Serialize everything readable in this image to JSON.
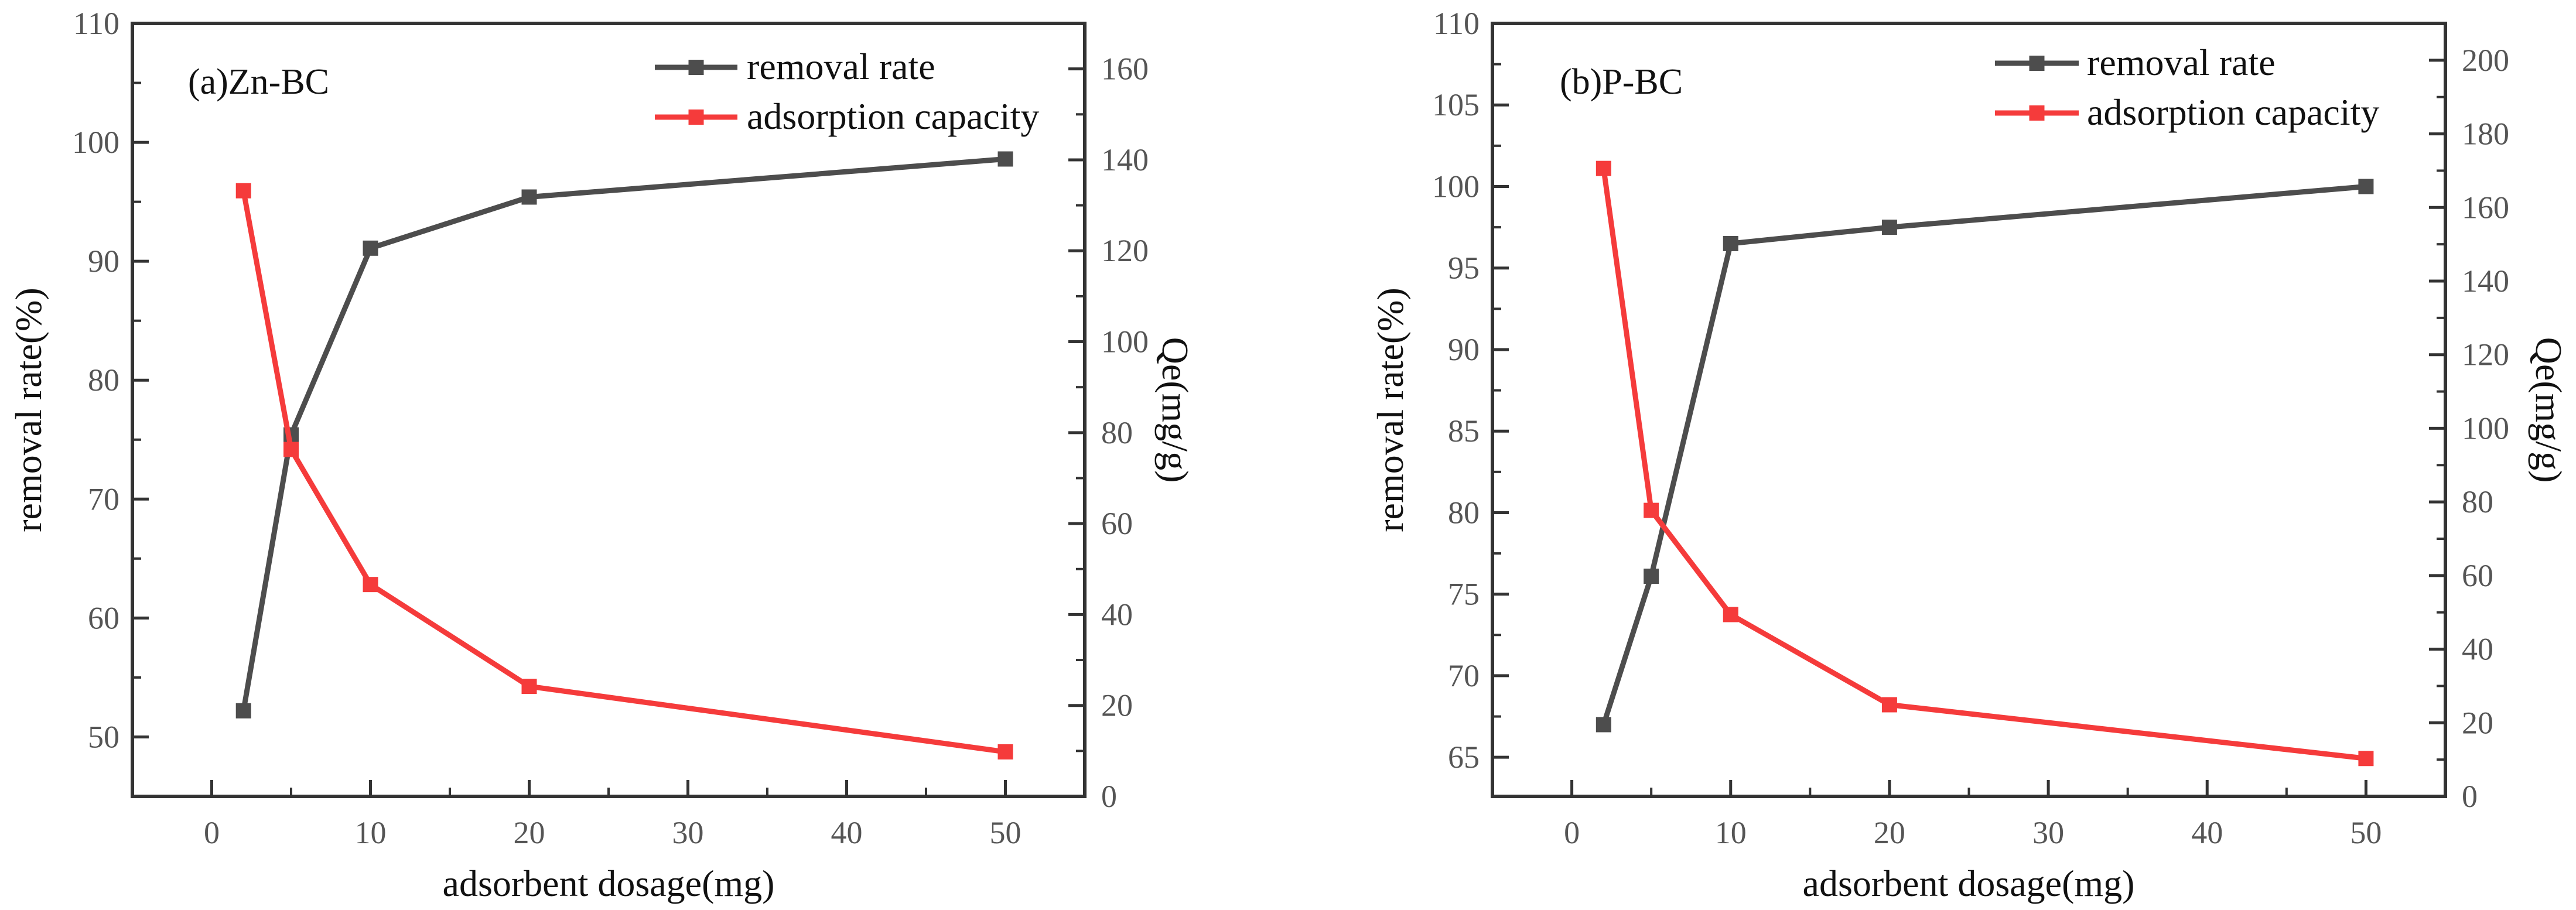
{
  "chart_data": [
    {
      "type": "line",
      "panel_label": "(a)Zn-BC",
      "xlabel": "adsorbent dosage(mg)",
      "ylabel": "removal rate(%)",
      "y2label": "Qe(mg/g)",
      "xlim": [
        -5,
        55
      ],
      "xticks": [
        0,
        10,
        20,
        30,
        40,
        50
      ],
      "ylim": [
        45,
        110
      ],
      "yticks": [
        50,
        60,
        70,
        80,
        90,
        100,
        110
      ],
      "y2lim": [
        0,
        170
      ],
      "y2ticks": [
        0,
        20,
        40,
        60,
        80,
        100,
        120,
        140,
        160
      ],
      "x": [
        2,
        5,
        10,
        20,
        50
      ],
      "series": [
        {
          "name": "removal rate",
          "axis": "left",
          "color": "#4d4d4d",
          "values": [
            52.2,
            75.4,
            91.1,
            95.4,
            98.6
          ]
        },
        {
          "name": "adsorption capacity",
          "axis": "right",
          "color": "#f53b3b",
          "values": [
            133.2,
            76.3,
            46.6,
            24.2,
            9.8
          ]
        }
      ],
      "legend_position": "top-right"
    },
    {
      "type": "line",
      "panel_label": "(b)P-BC",
      "xlabel": "adsorbent dosage(mg)",
      "ylabel": "removal rate(%)",
      "y2label": "Qe(mg/g)",
      "xlim": [
        -5,
        55
      ],
      "xticks": [
        0,
        10,
        20,
        30,
        40,
        50
      ],
      "ylim": [
        62.6,
        110
      ],
      "yticks": [
        65,
        70,
        75,
        80,
        85,
        90,
        95,
        100,
        105,
        110
      ],
      "y2lim": [
        0,
        210
      ],
      "y2ticks": [
        0,
        20,
        40,
        60,
        80,
        100,
        120,
        140,
        160,
        180,
        200
      ],
      "x": [
        2,
        5,
        10,
        20,
        50
      ],
      "series": [
        {
          "name": "removal rate",
          "axis": "left",
          "color": "#4d4d4d",
          "values": [
            67.0,
            76.1,
            96.5,
            97.5,
            100.0
          ]
        },
        {
          "name": "adsorption capacity",
          "axis": "right",
          "color": "#f53b3b",
          "values": [
            170.6,
            77.7,
            49.4,
            24.9,
            10.3
          ]
        }
      ],
      "legend_position": "top-right"
    }
  ]
}
